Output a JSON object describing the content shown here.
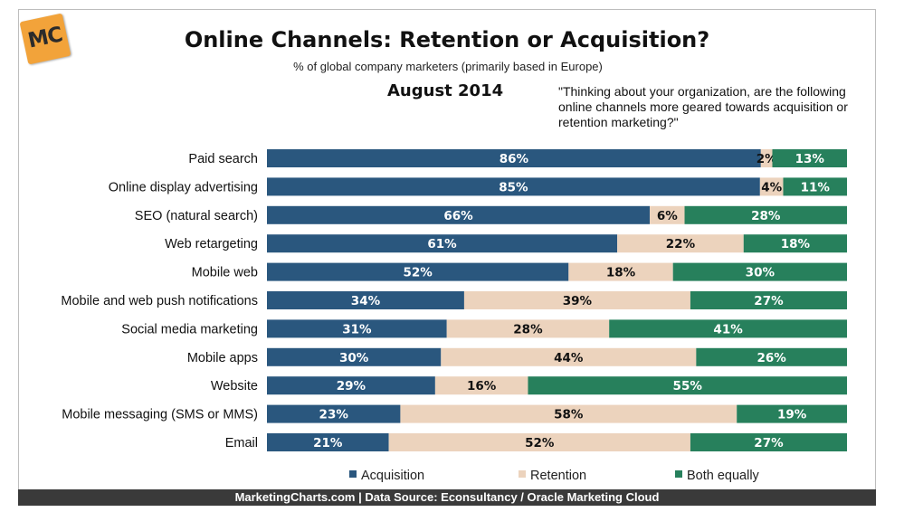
{
  "logo": {
    "text": "MC"
  },
  "header": {
    "title": "Online Channels: Retention or Acquisition?",
    "subtitle": "% of global company marketers (primarily based in Europe)",
    "date": "August 2014",
    "question": "\"Thinking about your organization, are the following online channels more geared towards acquisition or retention marketing?\""
  },
  "footer": {
    "text": "MarketingCharts.com | Data Source: Econsultancy / Oracle Marketing Cloud"
  },
  "colors": {
    "acquisition": "#2a577e",
    "retention": "#ecd3bd",
    "both": "#27805c"
  },
  "chart_data": {
    "type": "bar",
    "orientation": "horizontal",
    "stacked": true,
    "categories": [
      "Paid search",
      "Online display advertising",
      "SEO (natural search)",
      "Web retargeting",
      "Mobile web",
      "Mobile and web push notifications",
      "Social media marketing",
      "Mobile apps",
      "Website",
      "Mobile messaging (SMS or MMS)",
      "Email"
    ],
    "series": [
      {
        "name": "Acquisition",
        "values": [
          86,
          85,
          66,
          61,
          52,
          34,
          31,
          30,
          29,
          23,
          21
        ]
      },
      {
        "name": "Retention",
        "values": [
          2,
          4,
          6,
          22,
          18,
          39,
          28,
          44,
          16,
          58,
          52
        ]
      },
      {
        "name": "Both equally",
        "values": [
          13,
          11,
          28,
          18,
          30,
          27,
          41,
          26,
          55,
          19,
          27
        ]
      }
    ],
    "value_suffix": "%",
    "legend_position": "bottom",
    "grid": false
  }
}
